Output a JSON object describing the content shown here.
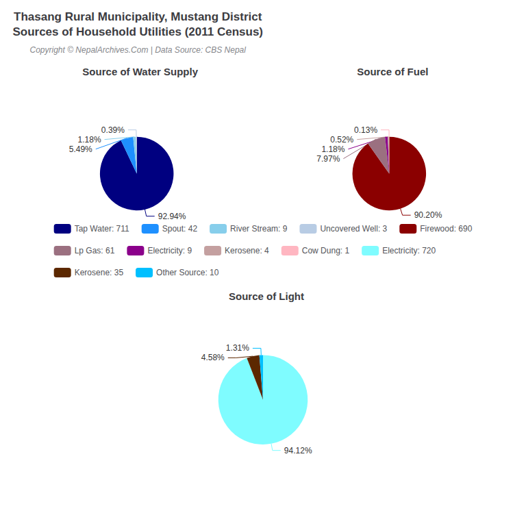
{
  "title": "Thasang Rural Municipality, Mustang District\nSources of Household Utilities (2011 Census)",
  "subtitle": "Copyright © NepalArchives.Com | Data Source: CBS Nepal",
  "legend": "center",
  "chart_data": [
    {
      "type": "pie",
      "title": "Source of Water Supply",
      "categories": [
        "Tap Water: 711",
        "Spout: 42",
        "River Stream: 9",
        "Uncovered Well: 3"
      ],
      "values": [
        92.94,
        5.49,
        1.18,
        0.39
      ],
      "value_labels": [
        "92.94%",
        "5.49%",
        "1.18%",
        "0.39%"
      ],
      "colors": [
        "#000080",
        "#1E90FF",
        "#87CEEB",
        "#B8CCE4"
      ],
      "data_labels": true
    },
    {
      "type": "pie",
      "title": "Source of Fuel",
      "categories": [
        "Firewood: 690",
        "Lp Gas: 61",
        "Electricity: 9",
        "Kerosene: 4",
        "Cow Dung: 1"
      ],
      "values": [
        90.2,
        7.97,
        1.18,
        0.52,
        0.13
      ],
      "value_labels": [
        "90.20%",
        "7.97%",
        "1.18%",
        "0.52%",
        "0.13%"
      ],
      "colors": [
        "#8B0000",
        "#9B7080",
        "#8B008B",
        "#C4A0A0",
        "#FFB6C1"
      ],
      "data_labels": true
    },
    {
      "type": "pie",
      "title": "Source of Light",
      "categories": [
        "Electricity: 720",
        "Kerosene: 35",
        "Other Source: 10"
      ],
      "values": [
        94.12,
        4.58,
        1.31
      ],
      "value_labels": [
        "94.12%",
        "4.58%",
        "1.31%"
      ],
      "colors": [
        "#7FFCFF",
        "#5C2800",
        "#00BFFF"
      ],
      "data_labels": true
    }
  ]
}
